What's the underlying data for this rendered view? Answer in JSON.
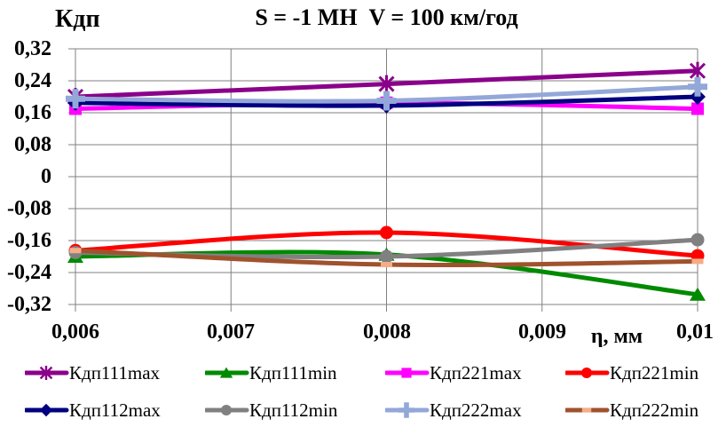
{
  "chart_data": {
    "type": "line",
    "title": "S = -1 МН  V = 100 км/год",
    "ylabel": "Кдп",
    "xlabel": "η, мм",
    "x": [
      0.006,
      0.008,
      0.01
    ],
    "xlim": [
      0.006,
      0.01
    ],
    "ylim": [
      -0.32,
      0.32
    ],
    "grid": true,
    "grid_color": "#808080",
    "legend_position": "bottom",
    "x_ticks": [
      "0,006",
      "0,007",
      "0,008",
      "0,009",
      "0,01"
    ],
    "x_tick_values": [
      0.006,
      0.007,
      0.008,
      0.009,
      0.01
    ],
    "y_ticks": [
      "0,32",
      "0,24",
      "0,16",
      "0,08",
      "0",
      "-0,08",
      "-0,16",
      "-0,24",
      "-0,32"
    ],
    "y_tick_values": [
      0.32,
      0.24,
      0.16,
      0.08,
      0,
      -0.08,
      -0.16,
      -0.24,
      -0.32
    ],
    "series": [
      {
        "name": "Кдп111max",
        "color": "#8A008A",
        "marker": "star",
        "values": [
          0.2,
          0.232,
          0.265
        ]
      },
      {
        "name": "Кдп111min",
        "color": "#008A00",
        "marker": "triangle",
        "values": [
          -0.2,
          -0.195,
          -0.295
        ]
      },
      {
        "name": "Кдп221max",
        "color": "#FF00FF",
        "marker": "square",
        "values": [
          0.17,
          0.185,
          0.17
        ]
      },
      {
        "name": "Кдп221min",
        "color": "#FF0000",
        "marker": "circle",
        "values": [
          -0.185,
          -0.14,
          -0.198
        ]
      },
      {
        "name": "Кдп112max",
        "color": "#000080",
        "marker": "diamond",
        "values": [
          0.185,
          0.178,
          0.2
        ]
      },
      {
        "name": "Кдп112min",
        "color": "#808080",
        "marker": "circle",
        "values": [
          -0.19,
          -0.2,
          -0.158
        ]
      },
      {
        "name": "Кдп222max",
        "color": "#93A8D8",
        "marker": "plus",
        "values": [
          0.195,
          0.19,
          0.225
        ]
      },
      {
        "name": "Кдп222min",
        "color": "#A0522D",
        "marker": "dash",
        "marker_color": "#F5AD88",
        "values": [
          -0.185,
          -0.22,
          -0.212
        ]
      }
    ]
  }
}
